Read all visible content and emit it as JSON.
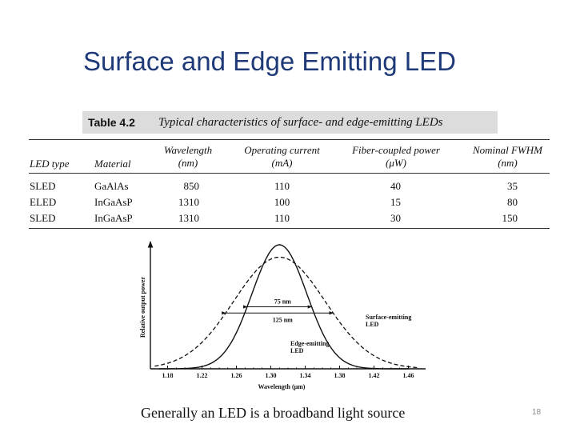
{
  "slide": {
    "title": "Surface and Edge Emitting LED",
    "caption": "Generally an LED is a broadband light source",
    "page_number": "18"
  },
  "table": {
    "number": "Table 4.2",
    "title": "Typical characteristics of surface- and edge-emitting LEDs",
    "headers": {
      "led_type": "LED type",
      "material": "Material",
      "wavelength": [
        "Wavelength",
        "(nm)"
      ],
      "current": [
        "Operating current",
        "(mA)"
      ],
      "power": [
        "Fiber-coupled power",
        "(μW)"
      ],
      "fwhm": [
        "Nominal FWHM",
        "(nm)"
      ]
    },
    "rows": [
      {
        "type": "SLED",
        "material": "GaAlAs",
        "wavelength": "850",
        "current": "110",
        "power": "40",
        "fwhm": "35"
      },
      {
        "type": "ELED",
        "material": "InGaAsP",
        "wavelength": "1310",
        "current": "100",
        "power": "15",
        "fwhm": "80"
      },
      {
        "type": "SLED",
        "material": "InGaAsP",
        "wavelength": "1310",
        "current": "110",
        "power": "30",
        "fwhm": "150"
      }
    ]
  },
  "chart_data": {
    "type": "line",
    "xlabel": "Wavelength (μm)",
    "ylabel": "Relative output power",
    "xlim": [
      1.16,
      1.48
    ],
    "ylim": [
      0,
      1
    ],
    "x_ticks": [
      "1.18",
      "1.22",
      "1.26",
      "1.30",
      "1.34",
      "1.38",
      "1.42",
      "1.46"
    ],
    "series": [
      {
        "name": "Surface-emitting LED",
        "peak_x": 1.31,
        "fwhm": 0.125,
        "peak_y": 0.9,
        "style": "dashed"
      },
      {
        "name": "Edge-emitting LED",
        "peak_x": 1.31,
        "fwhm": 0.075,
        "peak_y": 1.0,
        "style": "solid"
      }
    ],
    "annotations": [
      {
        "text": "75 nm",
        "value_nm": 75
      },
      {
        "text": "125 nm",
        "value_nm": 125
      }
    ],
    "series_labels": {
      "surface": [
        "Surface-emitting",
        "LED"
      ],
      "edge": [
        "Edge-emitting",
        "LED"
      ]
    }
  }
}
